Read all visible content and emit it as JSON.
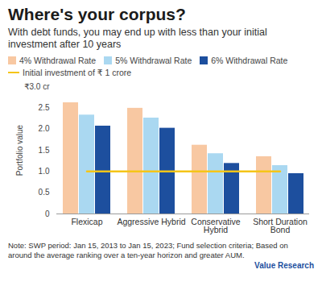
{
  "chart_data": {
    "type": "bar",
    "title": "Where's your corpus?",
    "subtitle": "With debt funds, you may end up with less than your initial investment after 10 years",
    "ylabel": "Portfolio value",
    "categories": [
      "Flexicap",
      "Aggressive Hybrid",
      "Conservative Hybrid",
      "Short Duration Bond"
    ],
    "series": [
      {
        "name": "4% Withdrawal Rate",
        "color": "#f8c8a2",
        "values": [
          2.62,
          2.49,
          1.62,
          1.35
        ]
      },
      {
        "name": "5% Withdrawal Rate",
        "color": "#aad8f1",
        "values": [
          2.33,
          2.26,
          1.42,
          1.14
        ]
      },
      {
        "name": "6% Withdrawal Rate",
        "color": "#1d4f9e",
        "values": [
          2.07,
          2.02,
          1.19,
          0.95
        ]
      },
      {
        "name": "Initial investment of ₹ 1 crore",
        "type": "line",
        "color": "#f5c518",
        "values": [
          1,
          1,
          1,
          1
        ]
      }
    ],
    "ylim": [
      0,
      3
    ],
    "yticks": [
      0,
      0.5,
      {
        "value": 1,
        "label": "1.0"
      },
      1.5,
      {
        "value": 2,
        "label": "2.0"
      },
      2.5,
      {
        "value": 3,
        "label": "₹3.0 cr"
      }
    ],
    "grid": false,
    "note": "Note: SWP period: Jan 15, 2013 to Jan 15, 2023; Fund selection criteria; Based on around the average ranking over a ten-year horizon and greater AUM.",
    "source": "Value Research"
  }
}
